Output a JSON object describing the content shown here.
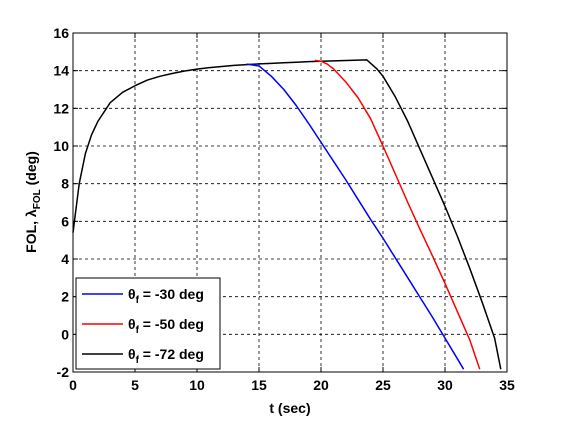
{
  "chart_data": {
    "type": "line",
    "xlabel": "t (sec)",
    "ylabel_parts": [
      "FOL, ",
      "λ",
      "FOL",
      " (deg)"
    ],
    "xlim": [
      0,
      35
    ],
    "ylim": [
      -2,
      16
    ],
    "xticks": [
      0,
      5,
      10,
      15,
      20,
      25,
      30,
      35
    ],
    "yticks": [
      -2,
      0,
      2,
      4,
      6,
      8,
      10,
      12,
      14,
      16
    ],
    "grid": true,
    "legend_position": "bottom-left",
    "series": [
      {
        "name_parts": [
          "θ",
          "f",
          " = -30 deg"
        ],
        "color": "#0000ff",
        "x": [
          14.0,
          15,
          16,
          17,
          18,
          19,
          20,
          21,
          22,
          23,
          24,
          25,
          26,
          27,
          28,
          29,
          30,
          31,
          31.5
        ],
        "y": [
          14.35,
          14.25,
          13.7,
          13.0,
          12.15,
          11.2,
          10.2,
          9.2,
          8.2,
          7.15,
          6.1,
          5.1,
          4.05,
          3.0,
          1.95,
          0.9,
          -0.2,
          -1.3,
          -1.85
        ]
      },
      {
        "name_parts": [
          "θ",
          "f",
          " = -50 deg"
        ],
        "color": "#ff0000",
        "x": [
          19.5,
          20,
          20.5,
          21,
          22,
          23,
          24,
          25,
          26,
          27,
          28,
          29,
          30,
          31,
          32,
          32.8
        ],
        "y": [
          14.55,
          14.5,
          14.35,
          14.1,
          13.4,
          12.55,
          11.45,
          10.0,
          8.5,
          7.0,
          5.55,
          4.15,
          2.7,
          1.2,
          -0.3,
          -1.85
        ]
      },
      {
        "name_parts": [
          "θ",
          "f",
          " = -72 deg"
        ],
        "color": "#000000",
        "x": [
          0,
          0.5,
          1,
          1.5,
          2,
          3,
          4,
          5,
          6,
          7,
          8,
          9,
          10,
          11,
          12,
          13,
          14,
          15,
          16,
          17,
          18,
          19,
          20,
          21,
          22,
          23,
          23.7,
          24.5,
          25,
          26,
          27,
          28,
          29,
          30,
          31,
          32,
          33,
          34,
          34.5
        ],
        "y": [
          5.4,
          8.0,
          9.6,
          10.6,
          11.3,
          12.3,
          12.85,
          13.2,
          13.5,
          13.7,
          13.85,
          13.98,
          14.08,
          14.16,
          14.22,
          14.28,
          14.32,
          14.36,
          14.39,
          14.42,
          14.45,
          14.48,
          14.5,
          14.52,
          14.54,
          14.56,
          14.57,
          14.1,
          13.7,
          12.6,
          11.3,
          9.8,
          8.3,
          6.8,
          5.2,
          3.5,
          1.7,
          -0.2,
          -1.85
        ]
      }
    ]
  }
}
